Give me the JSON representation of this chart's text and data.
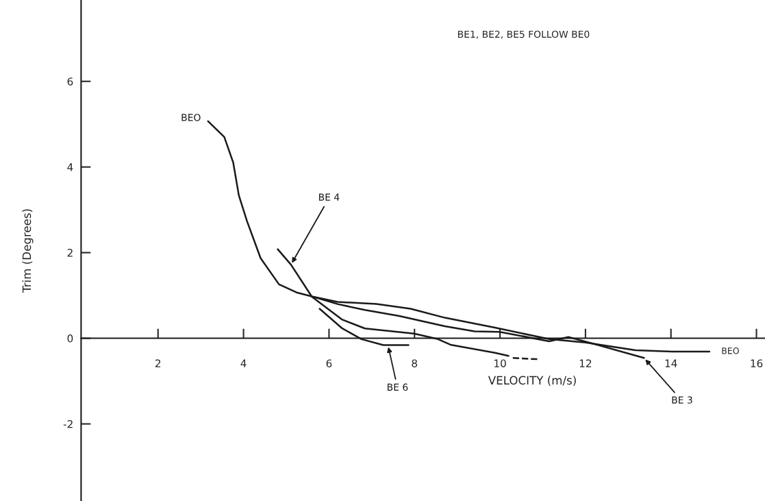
{
  "chart_data": {
    "type": "line",
    "xlabel": "VELOCITY (m/s)",
    "ylabel": "Trim (Degrees)",
    "xlim": [
      0.2,
      16.2
    ],
    "ylim": [
      -3.8,
      7.9
    ],
    "xticks": [
      2,
      4,
      6,
      8,
      10,
      12,
      14,
      16
    ],
    "yticks": [
      -2,
      0,
      2,
      4,
      6
    ],
    "grid": false,
    "legend": false,
    "marker": "none",
    "series": [
      {
        "name": "BEO",
        "color": "#1a1a1a",
        "x": [
          3.17,
          3.55,
          3.76,
          3.89,
          4.08,
          4.4,
          4.83,
          5.24,
          5.63,
          6.2,
          7.11,
          7.91,
          8.71,
          9.88,
          11.15,
          12.0,
          13.17,
          14.03,
          14.9
        ],
        "values": [
          5.07,
          4.7,
          4.1,
          3.34,
          2.74,
          1.87,
          1.26,
          1.07,
          0.97,
          0.85,
          0.8,
          0.69,
          0.48,
          0.25,
          -0.02,
          -0.1,
          -0.28,
          -0.31,
          -0.31
        ]
      },
      {
        "name": "BE 4",
        "color": "#1a1a1a",
        "x": [
          4.8,
          5.11,
          5.6,
          6.3,
          6.84,
          7.99,
          8.55,
          8.84,
          9.88,
          10.2
        ],
        "values": [
          2.08,
          1.72,
          0.97,
          0.44,
          0.23,
          0.11,
          -0.02,
          -0.15,
          -0.34,
          -0.41
        ]
      },
      {
        "color": "#1a1a1a",
        "line_style": "dashed",
        "x": [
          10.3,
          10.9
        ],
        "values": [
          -0.46,
          -0.49
        ]
      },
      {
        "name": "BE 6",
        "color": "#1a1a1a",
        "x": [
          5.78,
          6.31,
          6.76,
          7.27,
          7.38,
          7.86
        ],
        "values": [
          0.69,
          0.23,
          -0.02,
          -0.16,
          -0.16,
          -0.16
        ]
      },
      {
        "name": "BE 3",
        "color": "#1a1a1a",
        "x": [
          5.63,
          6.2,
          6.84,
          7.64,
          8.71,
          9.41,
          9.99,
          11.15,
          11.6,
          12.3,
          13.37
        ],
        "values": [
          0.97,
          0.8,
          0.66,
          0.52,
          0.28,
          0.16,
          0.15,
          -0.07,
          0.03,
          -0.16,
          -0.46
        ]
      }
    ],
    "annotations": [
      "BE1, BE2, BE5 FOLLOW BE0",
      {
        "text": "BEO",
        "x": 14.9,
        "y": -0.31
      }
    ]
  }
}
